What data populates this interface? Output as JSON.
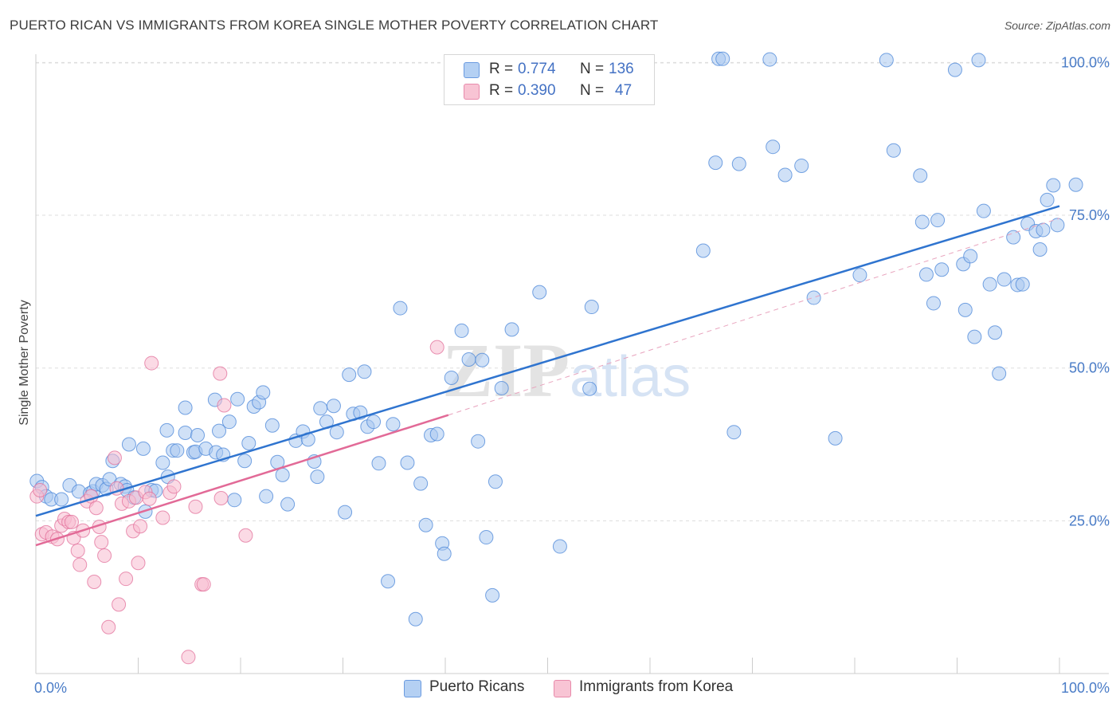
{
  "title": "PUERTO RICAN VS IMMIGRANTS FROM KOREA SINGLE MOTHER POVERTY CORRELATION CHART",
  "source": "Source: ZipAtlas.com",
  "watermark": {
    "zip": "ZIP",
    "atlas": "atlas"
  },
  "legend": {
    "rows": [
      {
        "r_label": "R =",
        "r_value": "0.774",
        "n_label": "N =",
        "n_value": "136",
        "color": "#9ec2f0"
      },
      {
        "r_label": "R =",
        "r_value": "0.390",
        "n_label": "N =",
        "n_value": "47",
        "color": "#f6b4c8"
      }
    ]
  },
  "bottom_legend": [
    {
      "label": "Puerto Ricans",
      "color": "#9ec2f0"
    },
    {
      "label": "Immigrants from Korea",
      "color": "#f6b4c8"
    }
  ],
  "chart_data": {
    "type": "scatter",
    "title": "PUERTO RICAN VS IMMIGRANTS FROM KOREA SINGLE MOTHER POVERTY CORRELATION CHART",
    "xlabel": "",
    "ylabel": "Single Mother Poverty",
    "xlim": [
      0,
      100
    ],
    "ylim": [
      0,
      103
    ],
    "x_tick_labels": [
      "0.0%",
      "100.0%"
    ],
    "y_ticks": [
      25,
      50,
      75,
      100
    ],
    "y_tick_labels": [
      "25.0%",
      "50.0%",
      "75.0%",
      "100.0%"
    ],
    "grid": true,
    "series": [
      {
        "name": "Puerto Ricans",
        "color": "#4a86d8",
        "fill": "#a9c8f0",
        "trend": {
          "x0": 0,
          "y0": 25.8,
          "x1": 100,
          "y1": 76.5
        },
        "points": [
          [
            0.1,
            31.5
          ],
          [
            0.6,
            30.5
          ],
          [
            1,
            29
          ],
          [
            1.5,
            28.5
          ],
          [
            2.5,
            28.5
          ],
          [
            3.3,
            30.8
          ],
          [
            4.2,
            29.8
          ],
          [
            5.3,
            29.5
          ],
          [
            5.6,
            29.8
          ],
          [
            5.9,
            31
          ],
          [
            6.5,
            30.8
          ],
          [
            6.9,
            30.2
          ],
          [
            7.2,
            31.8
          ],
          [
            7.5,
            34.8
          ],
          [
            8.3,
            31
          ],
          [
            8.7,
            30.6
          ],
          [
            8.9,
            30
          ],
          [
            9.1,
            37.5
          ],
          [
            9.6,
            28.8
          ],
          [
            10.5,
            36.8
          ],
          [
            10.7,
            26.5
          ],
          [
            11.3,
            30
          ],
          [
            11.7,
            29.9
          ],
          [
            12.4,
            34.5
          ],
          [
            12.8,
            39.8
          ],
          [
            12.9,
            32.2
          ],
          [
            13.4,
            36.5
          ],
          [
            13.8,
            36.5
          ],
          [
            14.6,
            39.4
          ],
          [
            14.6,
            43.5
          ],
          [
            15.4,
            36.2
          ],
          [
            15.6,
            36.3
          ],
          [
            15.8,
            39
          ],
          [
            16.6,
            36.8
          ],
          [
            17.5,
            44.8
          ],
          [
            17.6,
            36.2
          ],
          [
            17.9,
            39.7
          ],
          [
            18.3,
            35.8
          ],
          [
            18.9,
            41.2
          ],
          [
            19.4,
            28.4
          ],
          [
            19.7,
            44.9
          ],
          [
            20.4,
            34.8
          ],
          [
            20.8,
            37.7
          ],
          [
            21.3,
            43.7
          ],
          [
            21.8,
            44.4
          ],
          [
            22.2,
            46
          ],
          [
            22.5,
            29
          ],
          [
            23.1,
            40.6
          ],
          [
            23.6,
            34.6
          ],
          [
            24.1,
            32.5
          ],
          [
            24.6,
            27.7
          ],
          [
            25.4,
            38.1
          ],
          [
            26.1,
            39.6
          ],
          [
            26.6,
            38.3
          ],
          [
            27.2,
            34.7
          ],
          [
            27.5,
            32.2
          ],
          [
            27.8,
            43.4
          ],
          [
            28.4,
            41.2
          ],
          [
            29.1,
            43.8
          ],
          [
            29.4,
            39.5
          ],
          [
            30.2,
            26.4
          ],
          [
            30.6,
            48.9
          ],
          [
            31,
            42.5
          ],
          [
            31.7,
            42.7
          ],
          [
            32.1,
            49.4
          ],
          [
            32.4,
            40.4
          ],
          [
            33,
            41.2
          ],
          [
            33.5,
            34.4
          ],
          [
            34.4,
            15.1
          ],
          [
            34.9,
            40.8
          ],
          [
            35.6,
            59.8
          ],
          [
            36.3,
            34.5
          ],
          [
            37.1,
            8.9
          ],
          [
            37.6,
            31.1
          ],
          [
            38.1,
            24.3
          ],
          [
            38.6,
            39
          ],
          [
            39.2,
            39.2
          ],
          [
            39.7,
            21.3
          ],
          [
            39.9,
            19.6
          ],
          [
            40.6,
            48.4
          ],
          [
            41.6,
            56.1
          ],
          [
            42.3,
            51.4
          ],
          [
            43.2,
            38
          ],
          [
            43.6,
            51.3
          ],
          [
            44,
            22.3
          ],
          [
            44.6,
            12.8
          ],
          [
            44.9,
            31.4
          ],
          [
            45.5,
            46.7
          ],
          [
            46.5,
            56.3
          ],
          [
            49.2,
            62.4
          ],
          [
            51.2,
            20.8
          ],
          [
            54.1,
            46.6
          ],
          [
            54.3,
            60
          ],
          [
            65.2,
            69.2
          ],
          [
            66.7,
            100.6
          ],
          [
            67.1,
            100.6
          ],
          [
            66.4,
            83.6
          ],
          [
            68.7,
            83.4
          ],
          [
            68.2,
            39.5
          ],
          [
            72,
            86.2
          ],
          [
            71.7,
            100.5
          ],
          [
            73.2,
            81.6
          ],
          [
            74.8,
            83.1
          ],
          [
            76,
            61.5
          ],
          [
            78.1,
            38.5
          ],
          [
            80.5,
            65.2
          ],
          [
            83.1,
            100.4
          ],
          [
            83.8,
            85.6
          ],
          [
            86.4,
            81.5
          ],
          [
            86.6,
            73.9
          ],
          [
            87,
            65.3
          ],
          [
            87.7,
            60.6
          ],
          [
            88.1,
            74.2
          ],
          [
            88.5,
            66.1
          ],
          [
            89.8,
            98.8
          ],
          [
            90.6,
            67
          ],
          [
            90.8,
            59.5
          ],
          [
            91.3,
            68.3
          ],
          [
            91.7,
            55.1
          ],
          [
            92.1,
            100.4
          ],
          [
            92.6,
            75.7
          ],
          [
            93.2,
            63.7
          ],
          [
            93.7,
            55.8
          ],
          [
            94.1,
            49.1
          ],
          [
            94.6,
            64.5
          ],
          [
            95.5,
            71.4
          ],
          [
            95.9,
            63.6
          ],
          [
            96.4,
            63.7
          ],
          [
            96.9,
            73.6
          ],
          [
            97.7,
            72.4
          ],
          [
            98.1,
            69.4
          ],
          [
            98.4,
            72.6
          ],
          [
            98.8,
            77.5
          ],
          [
            99.4,
            79.9
          ],
          [
            99.8,
            73.4
          ],
          [
            101.6,
            80
          ]
        ]
      },
      {
        "name": "Immigrants from Korea",
        "color": "#e16f9a",
        "fill": "#f7bcd0",
        "trend": {
          "x0": 0,
          "y0": 21,
          "x1": 40.3,
          "y1": 42.3
        },
        "trend_ext": {
          "x0": 40.3,
          "y0": 42.3,
          "x1": 100,
          "y1": 74.5
        },
        "points": [
          [
            0.1,
            29
          ],
          [
            0.4,
            30
          ],
          [
            0.6,
            22.8
          ],
          [
            1,
            23.1
          ],
          [
            1.6,
            22.4
          ],
          [
            2.1,
            22
          ],
          [
            2.5,
            24.2
          ],
          [
            2.8,
            25.3
          ],
          [
            3.2,
            24.8
          ],
          [
            3.5,
            24.8
          ],
          [
            3.7,
            22.2
          ],
          [
            4.1,
            20.1
          ],
          [
            4.3,
            17.8
          ],
          [
            4.6,
            23.4
          ],
          [
            5,
            28.2
          ],
          [
            5.4,
            29
          ],
          [
            5.7,
            15
          ],
          [
            5.9,
            27.1
          ],
          [
            6.2,
            24
          ],
          [
            6.4,
            21.5
          ],
          [
            6.7,
            19.3
          ],
          [
            7.1,
            7.6
          ],
          [
            7.7,
            35.3
          ],
          [
            7.9,
            30.3
          ],
          [
            8.1,
            11.3
          ],
          [
            8.4,
            27.8
          ],
          [
            8.8,
            15.5
          ],
          [
            9.1,
            28.2
          ],
          [
            9.5,
            23.3
          ],
          [
            9.8,
            28.8
          ],
          [
            10,
            18.1
          ],
          [
            10.2,
            24.1
          ],
          [
            10.7,
            29.7
          ],
          [
            11.1,
            28.6
          ],
          [
            11.3,
            50.8
          ],
          [
            12.4,
            25.5
          ],
          [
            13.1,
            29.6
          ],
          [
            13.5,
            30.6
          ],
          [
            14.9,
            2.7
          ],
          [
            15.6,
            27.3
          ],
          [
            16.2,
            14.6
          ],
          [
            16.4,
            14.6
          ],
          [
            18,
            49.1
          ],
          [
            18.1,
            28.7
          ],
          [
            18.4,
            43.9
          ],
          [
            20.5,
            22.6
          ],
          [
            39.2,
            53.4
          ]
        ]
      }
    ]
  }
}
